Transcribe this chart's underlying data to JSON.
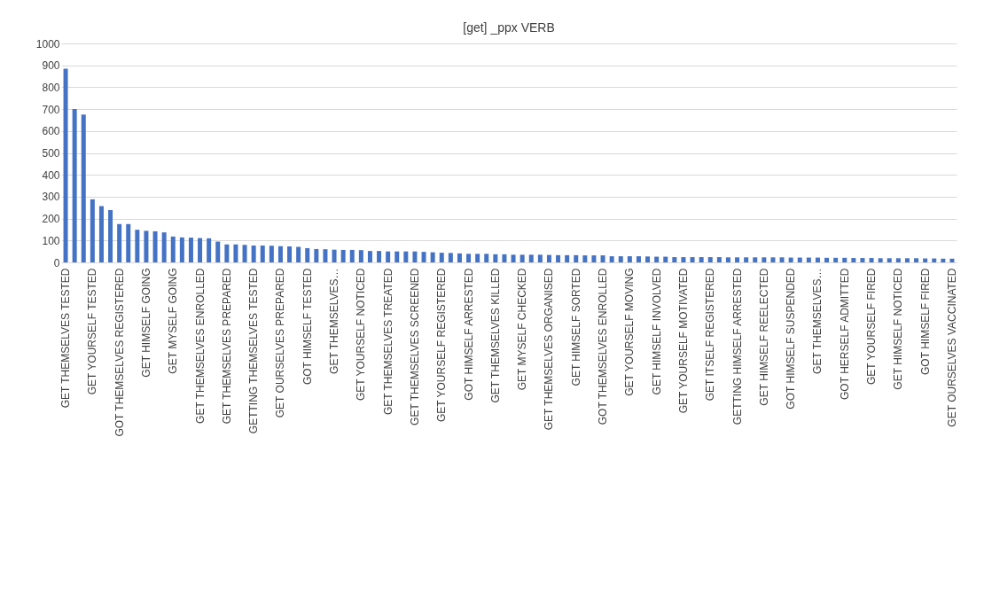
{
  "chart_data": {
    "type": "bar",
    "title": "[get] _ppx VERB",
    "categories": [
      "GET THEMSELVES TESTED",
      null,
      null,
      "GET YOURSELF TESTED",
      null,
      null,
      "GOT THEMSELVES REGISTERED",
      null,
      null,
      "GET HIMSELF GOING",
      null,
      null,
      "GET MYSELF GOING",
      null,
      null,
      "GET THEMSELVES ENROLLED",
      null,
      null,
      "GET THEMSELVES PREPARED",
      null,
      null,
      "GETTING THEMSELVES TESTED",
      null,
      null,
      "GET OURSELVES PREPARED",
      null,
      null,
      "GOT HIMSELF TESTED",
      null,
      null,
      "GET THEMSELVES…",
      null,
      null,
      "GET YOURSELF NOTICED",
      null,
      null,
      "GET THEMSELVES TREATED",
      null,
      null,
      "GET THEMSELVES SCREENED",
      null,
      null,
      "GET YOURSELF REGISTERED",
      null,
      null,
      "GOT HIMSELF ARRESTED",
      null,
      null,
      "GET THEMSELVES KILLED",
      null,
      null,
      "GET MYSELF CHECKED",
      null,
      null,
      "GET THEMSELVES ORGANISED",
      null,
      null,
      "GET HIMSELF SORTED",
      null,
      null,
      "GOT THEMSELVES ENROLLED",
      null,
      null,
      "GET YOURSELF MOVING",
      null,
      null,
      "GET HIMSELF INVOLVED",
      null,
      null,
      "GET YOURSELF MOTIVATED",
      null,
      null,
      "GET ITSELF REGISTERED",
      null,
      null,
      "GETTING HIMSELF ARRESTED",
      null,
      null,
      "GET HIMSELF REELECTED",
      null,
      null,
      "GOT HIMSELF SUSPENDED",
      null,
      null,
      "GET THEMSELVES…",
      null,
      null,
      "GOT HERSELF ADMITTED",
      null,
      null,
      "GET YOURSELF FIRED",
      null,
      null,
      "GET HIMSELF NOTICED",
      null,
      null,
      "GOT HIMSELF FIRED",
      null,
      null,
      "GET OURSELVES VACCINATED"
    ],
    "values": [
      885,
      700,
      675,
      288,
      257,
      239,
      175,
      175,
      149,
      144,
      142,
      137,
      118,
      114,
      113,
      111,
      110,
      95,
      82,
      82,
      80,
      77,
      77,
      76,
      74,
      73,
      71,
      65,
      61,
      60,
      58,
      57,
      57,
      56,
      52,
      52,
      50,
      50,
      50,
      50,
      48,
      46,
      44,
      43,
      41,
      39,
      39,
      39,
      37,
      37,
      35,
      35,
      35,
      35,
      34,
      33,
      33,
      33,
      32,
      32,
      32,
      28,
      28,
      28,
      28,
      27,
      26,
      26,
      24,
      24,
      24,
      24,
      24,
      24,
      23,
      23,
      23,
      23,
      23,
      23,
      23,
      22,
      22,
      22,
      22,
      21,
      21,
      21,
      20,
      20,
      20,
      19,
      19,
      19,
      19,
      19,
      18,
      18,
      17,
      17
    ],
    "color": "#4472c4",
    "ylim": [
      0,
      1000
    ],
    "yticks": [
      0,
      100,
      200,
      300,
      400,
      500,
      600,
      700,
      800,
      900,
      1000
    ],
    "grid": "y"
  }
}
